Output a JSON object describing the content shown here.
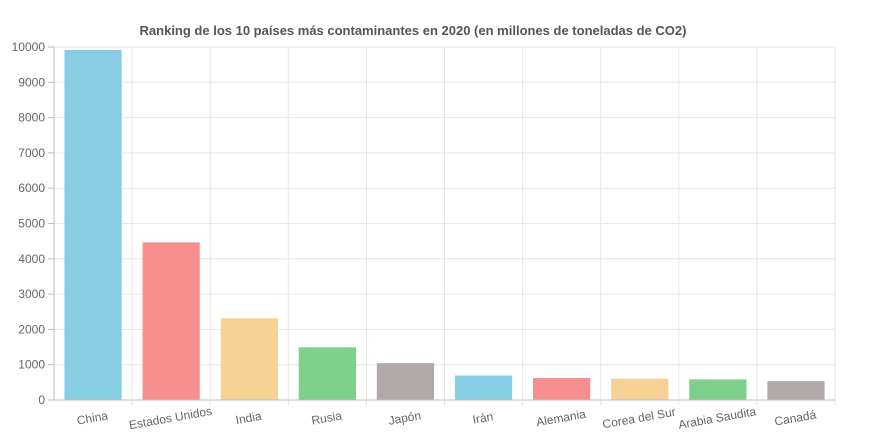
{
  "chart_data": {
    "type": "bar",
    "title": "Ranking de los 10 países más contaminantes en 2020 (en millones de toneladas de CO2)",
    "xlabel": "",
    "ylabel": "",
    "categories": [
      "China",
      "Estados Unidos",
      "India",
      "Rusia",
      "Japón",
      "Irán",
      "Alemania",
      "Corea del Sur",
      "Arabia Saudita",
      "Canadá"
    ],
    "values": [
      9900,
      4450,
      2300,
      1480,
      1030,
      680,
      610,
      590,
      570,
      520
    ],
    "colors": [
      "#87cde6",
      "#f78f8f",
      "#f7d196",
      "#7fd08a",
      "#b2aaaa",
      "#87cde6",
      "#f78f8f",
      "#f7d196",
      "#7fd08a",
      "#b2aaaa"
    ],
    "ylim": [
      0,
      10000
    ],
    "yticks": [
      0,
      1000,
      2000,
      3000,
      4000,
      5000,
      6000,
      7000,
      8000,
      9000,
      10000
    ],
    "grid": true,
    "legend": "none"
  }
}
